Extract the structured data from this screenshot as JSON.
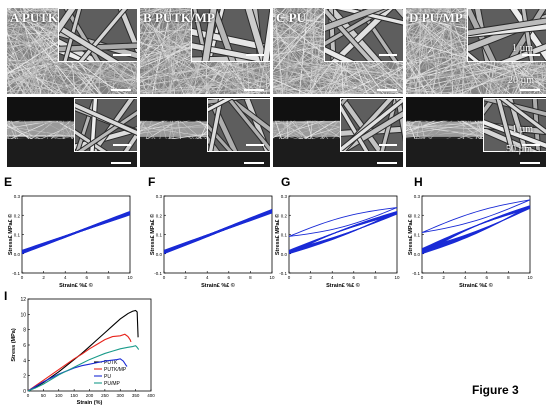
{
  "sem": {
    "panels": [
      {
        "letter": "A",
        "name": "PUTK"
      },
      {
        "letter": "B",
        "name": "PUTK/MP"
      },
      {
        "letter": "C",
        "name": "PU"
      },
      {
        "letter": "D",
        "name": "PU/MP"
      }
    ],
    "scales": {
      "inset_top": "1 µm",
      "main_top": "20 µm",
      "inset_bottom": "1 µm",
      "main_bottom": "50 µm"
    }
  },
  "cyclic": {
    "xlabel": "Strain£ %£ ©",
    "ylabel": "Stress£ MPa£ ©",
    "panels": [
      {
        "letter": "E",
        "type": "line",
        "xlim": [
          0,
          10
        ],
        "ylim": [
          -0.1,
          0.3
        ],
        "yticks": [
          "-0.1",
          "0.0",
          "0.1",
          "0.2",
          "0.3"
        ],
        "xticks": [
          "0",
          "2",
          "4",
          "6",
          "8",
          "10"
        ],
        "loops": [
          {
            "start": 0.0,
            "end": 0.22,
            "gap": 0.006,
            "repeats": 10,
            "lift": 0.02
          }
        ]
      },
      {
        "letter": "F",
        "type": "line",
        "xlim": [
          0,
          10
        ],
        "ylim": [
          -0.1,
          0.3
        ],
        "yticks": [
          "-0.1",
          "0.0",
          "0.1",
          "0.2",
          "0.3"
        ],
        "xticks": [
          "0",
          "2",
          "4",
          "6",
          "8",
          "10"
        ],
        "loops": [
          {
            "start": 0.0,
            "end": 0.23,
            "gap": 0.008,
            "repeats": 10,
            "lift": 0.02
          }
        ]
      },
      {
        "letter": "G",
        "type": "line",
        "xlim": [
          0,
          10
        ],
        "ylim": [
          -0.1,
          0.3
        ],
        "yticks": [
          "-0.1",
          "0.0",
          "0.1",
          "0.2",
          "0.3"
        ],
        "xticks": [
          "0",
          "2",
          "4",
          "6",
          "8",
          "10"
        ],
        "loops": [
          {
            "start": 0.09,
            "end": 0.24,
            "gap": 0.05,
            "repeats": 1,
            "lift": 0.0
          },
          {
            "start": 0.0,
            "end": 0.22,
            "gap": 0.03,
            "repeats": 8,
            "lift": 0.02
          }
        ]
      },
      {
        "letter": "H",
        "type": "line",
        "xlim": [
          0,
          10
        ],
        "ylim": [
          -0.1,
          0.3
        ],
        "yticks": [
          "-0.1",
          "0.0",
          "0.1",
          "0.2",
          "0.3"
        ],
        "xticks": [
          "0",
          "2",
          "4",
          "6",
          "8",
          "10"
        ],
        "loops": [
          {
            "start": 0.11,
            "end": 0.28,
            "gap": 0.045,
            "repeats": 1,
            "lift": 0.0
          },
          {
            "start": 0.0,
            "end": 0.25,
            "gap": 0.04,
            "repeats": 8,
            "lift": 0.03
          }
        ]
      }
    ]
  },
  "chart_data": {
    "type": "line",
    "letter": "I",
    "xlabel": "Strain (%)",
    "ylabel": "Stress (MPa)",
    "xlim": [
      0,
      400
    ],
    "ylim": [
      0,
      12
    ],
    "xticks": [
      "0",
      "50",
      "100",
      "150",
      "200",
      "250",
      "300",
      "350",
      "400"
    ],
    "yticks": [
      "0",
      "2",
      "4",
      "6",
      "8",
      "10",
      "12"
    ],
    "series": [
      {
        "name": "PUTK",
        "color": "#000000",
        "x": [
          0,
          25,
          50,
          75,
          100,
          125,
          150,
          175,
          200,
          225,
          250,
          275,
          300,
          325,
          340,
          350,
          355,
          358
        ],
        "y": [
          0,
          0.5,
          1.1,
          1.8,
          2.5,
          3.3,
          4.1,
          4.9,
          5.8,
          6.7,
          7.6,
          8.5,
          9.4,
          10.1,
          10.4,
          10.5,
          10.3,
          7.0
        ]
      },
      {
        "name": "PUTK/MP",
        "color": "#e8231b",
        "x": [
          0,
          25,
          50,
          75,
          100,
          125,
          150,
          175,
          200,
          225,
          250,
          275,
          300,
          315,
          325,
          332,
          335
        ],
        "y": [
          0,
          0.7,
          1.4,
          2.1,
          2.8,
          3.5,
          4.2,
          4.8,
          5.5,
          6.1,
          6.7,
          7.1,
          7.2,
          7.4,
          7.1,
          6.7,
          6.4
        ]
      },
      {
        "name": "PU",
        "color": "#1a2bd6",
        "x": [
          0,
          25,
          50,
          75,
          100,
          125,
          150,
          175,
          200,
          225,
          250,
          270,
          290,
          300,
          310,
          318,
          322
        ],
        "y": [
          0,
          0.6,
          1.2,
          1.7,
          2.2,
          2.6,
          3.0,
          3.3,
          3.5,
          3.7,
          3.9,
          4.0,
          4.1,
          4.2,
          3.9,
          3.4,
          3.2
        ]
      },
      {
        "name": "PU/MP",
        "color": "#1a9b8a",
        "x": [
          0,
          25,
          50,
          75,
          100,
          125,
          150,
          175,
          200,
          225,
          250,
          275,
          300,
          325,
          340,
          350,
          355,
          360
        ],
        "y": [
          0,
          0.4,
          0.9,
          1.5,
          2.1,
          2.6,
          3.1,
          3.6,
          4.1,
          4.5,
          4.9,
          5.2,
          5.5,
          5.7,
          5.8,
          5.9,
          5.7,
          5.4
        ]
      }
    ]
  },
  "figure_label": "Figure 3"
}
